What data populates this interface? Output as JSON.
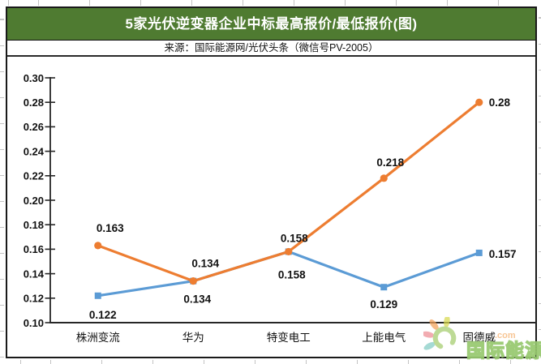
{
  "header": {
    "title": "5家光伏逆变器企业中标最高报价/最低报价(图)",
    "title_bg": "#4f7b31",
    "title_color": "#ffffff"
  },
  "source_line": "来源：国际能源网/光伏头条（微信号PV-2005）",
  "chart_data": {
    "type": "line",
    "title": "",
    "xlabel": "",
    "ylabel": "",
    "categories": [
      "株洲变流",
      "华为",
      "特变电工",
      "上能电气",
      "固德威"
    ],
    "series": [
      {
        "name": "最低报价",
        "color": "#5B9BD5",
        "marker": "square",
        "values": [
          0.122,
          0.134,
          0.158,
          0.129,
          0.157
        ],
        "label_offsets": [
          [
            6,
            28
          ],
          [
            5,
            27
          ],
          [
            4,
            33
          ],
          [
            0,
            26
          ],
          [
            12,
            6
          ]
        ],
        "label_anchor_last": "start"
      },
      {
        "name": "最高报价",
        "color": "#ED7D31",
        "marker": "circle",
        "values": [
          0.163,
          0.134,
          0.158,
          0.218,
          0.28
        ],
        "label_offsets": [
          [
            15,
            -17
          ],
          [
            15,
            -17
          ],
          [
            7,
            -12
          ],
          [
            8,
            -15
          ],
          [
            12,
            5
          ]
        ],
        "label_anchor_last": "start"
      }
    ],
    "ylim": [
      0.1,
      0.3
    ],
    "ytick_step": 0.02,
    "grid": false,
    "legend_position": "none",
    "axis_color": "#262626",
    "label_color": "#111111"
  },
  "watermark": {
    "site_name": "国际能源网",
    "domain_suffix": ".com",
    "logo": "sun-flower-logo",
    "stroke_color": "#96c86e",
    "logo_colors": {
      "crescent": "#a5cd6e",
      "petal_yellow": "#d7d94f",
      "petal_orange": "#f4a259",
      "petal_pink": "#ee8e93",
      "petal_teal": "#83ccc5"
    }
  }
}
